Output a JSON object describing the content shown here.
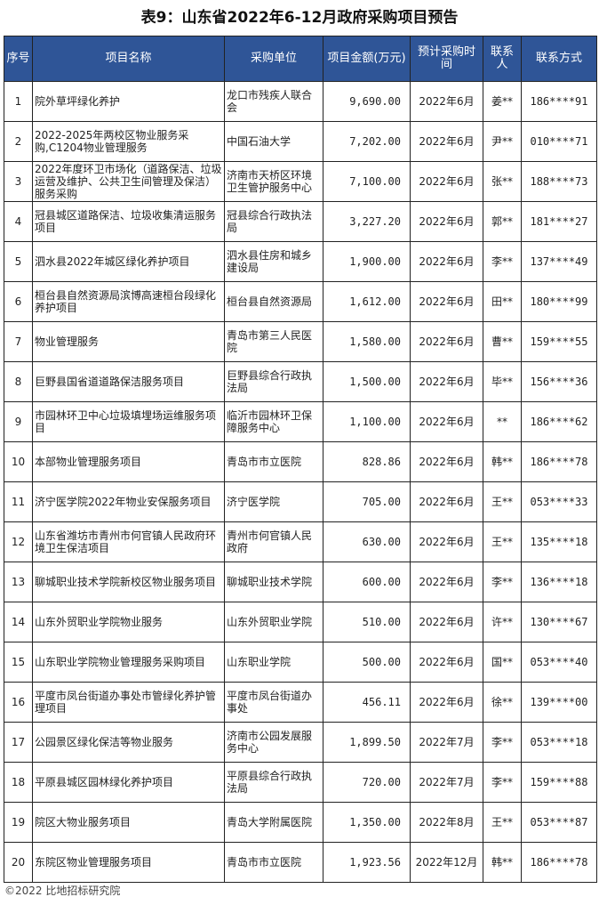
{
  "title": "表9：山东省2022年6-12月政府采购项目预告",
  "headers": [
    "序号",
    "项目名称",
    "采购单位",
    "项目金额(万元)",
    "预计采购时间",
    "联系人",
    "联系方式"
  ],
  "rows": [
    [
      "1",
      "院外草坪绿化养护",
      "龙口市残疾人联合会",
      "9,690.00",
      "2022年6月",
      "姜**",
      "186****91"
    ],
    [
      "2",
      "2022-2025年两校区物业服务采购,C1204物业管理服务",
      "中国石油大学",
      "7,202.00",
      "2022年6月",
      "尹**",
      "010****71"
    ],
    [
      "3",
      "2022年度环卫市场化（道路保洁、垃圾运营及维护、公共卫生间管理及保洁）服务采购",
      "济南市天桥区环境卫生管护服务中心",
      "7,100.00",
      "2022年6月",
      "张**",
      "188****73"
    ],
    [
      "4",
      "冠县城区道路保洁、垃圾收集清运服务项目",
      "冠县综合行政执法局",
      "3,227.20",
      "2022年6月",
      "郭**",
      "181****27"
    ],
    [
      "5",
      "泗水县2022年城区绿化养护项目",
      "泗水县住房和城乡建设局",
      "1,900.00",
      "2022年6月",
      "李**",
      "137****49"
    ],
    [
      "6",
      "桓台县自然资源局滨博高速桓台段绿化养护项目",
      "桓台县自然资源局",
      "1,612.00",
      "2022年6月",
      "田**",
      "180****99"
    ],
    [
      "7",
      "物业管理服务",
      "青岛市第三人民医院",
      "1,580.00",
      "2022年6月",
      "曹**",
      "159****55"
    ],
    [
      "8",
      "巨野县国省道道路保洁服务项目",
      "巨野县综合行政执法局",
      "1,500.00",
      "2022年6月",
      "毕**",
      "156****36"
    ],
    [
      "9",
      "市园林环卫中心垃圾填埋场运维服务项目",
      "临沂市园林环卫保障服务中心",
      "1,100.00",
      "2022年6月",
      "**",
      "186****62"
    ],
    [
      "10",
      "本部物业管理服务项目",
      "青岛市市立医院",
      "828.86",
      "2022年6月",
      "韩**",
      "186****78"
    ],
    [
      "11",
      "济宁医学院2022年物业安保服务项目",
      "济宁医学院",
      "705.00",
      "2022年6月",
      "王**",
      "053****33"
    ],
    [
      "12",
      "山东省潍坊市青州市何官镇人民政府环境卫生保洁项目",
      "青州市何官镇人民政府",
      "630.00",
      "2022年6月",
      "王**",
      "135****18"
    ],
    [
      "13",
      "聊城职业技术学院新校区物业服务项目",
      "聊城职业技术学院",
      "600.00",
      "2022年6月",
      "李**",
      "136****18"
    ],
    [
      "14",
      "山东外贸职业学院物业服务",
      "山东外贸职业学院",
      "510.00",
      "2022年6月",
      "许**",
      "130****67"
    ],
    [
      "15",
      "山东职业学院物业管理服务采购项目",
      "山东职业学院",
      "500.00",
      "2022年6月",
      "国**",
      "053****40"
    ],
    [
      "16",
      "平度市凤台街道办事处市管绿化养护管理项目",
      "平度市凤台街道办事处",
      "456.11",
      "2022年6月",
      "徐**",
      "139****00"
    ],
    [
      "17",
      "公园景区绿化保洁等物业服务",
      "济南市公园发展服务中心",
      "1,899.50",
      "2022年7月",
      "李**",
      "053****18"
    ],
    [
      "18",
      "平原县城区园林绿化养护项目",
      "平原县综合行政执法局",
      "720.00",
      "2022年7月",
      "李**",
      "159****88"
    ],
    [
      "19",
      "院区大物业服务项目",
      "青岛大学附属医院",
      "1,350.00",
      "2022年8月",
      "王**",
      "053****87"
    ],
    [
      "20",
      "东院区物业管理服务项目",
      "青岛市市立医院",
      "1,923.56",
      "2022年12月",
      "韩**",
      "186****78"
    ]
  ],
  "footer": "©2022 比地招标研究院"
}
